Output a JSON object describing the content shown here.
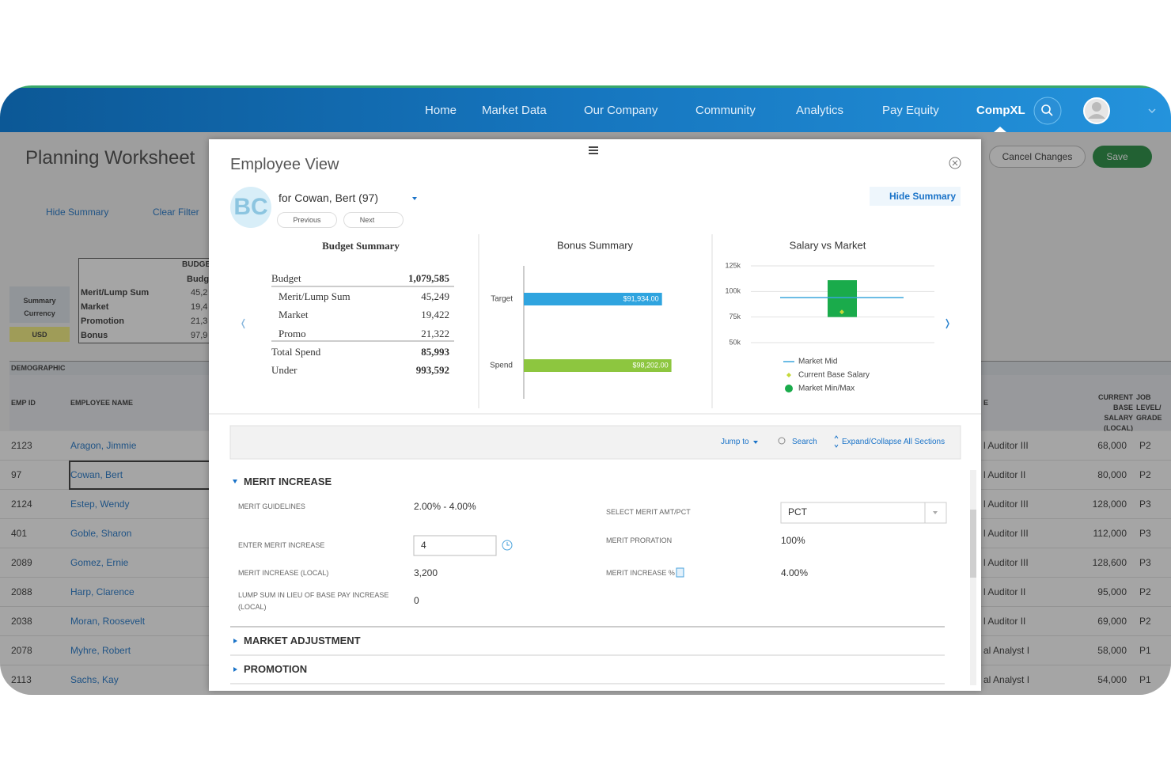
{
  "nav": {
    "items": [
      "Home",
      "Market Data",
      "Our Company",
      "Community",
      "Analytics",
      "Pay Equity",
      "CompXL"
    ]
  },
  "worksheet": {
    "title": "Planning Worksheet",
    "hide_summary": "Hide Summary",
    "clear_filter": "Clear Filter",
    "cancel": "Cancel Changes",
    "save": "Save",
    "summary_label": "Summary Currency",
    "currency": "USD",
    "budget_header": "BUDGE",
    "budget_sub": "Budg",
    "budget_rows": [
      [
        "Merit/Lump Sum",
        "45,2"
      ],
      [
        "Market",
        "19,4"
      ],
      [
        "Promotion",
        "21,3"
      ],
      [
        "Bonus",
        "97,9"
      ]
    ],
    "demographic": "DEMOGRAPHIC",
    "col_emp_id": "EMP ID",
    "col_name": "EMPLOYEE NAME",
    "col_job": "E",
    "col_salary": "CURRENT BASE SALARY (LOCAL)",
    "col_grade": "JOB LEVEL/ GRADE",
    "rows": [
      [
        "2123",
        "Aragon, Jimmie",
        "l Auditor III",
        "68,000",
        "P2"
      ],
      [
        "97",
        "Cowan, Bert",
        "l Auditor II",
        "80,000",
        "P2"
      ],
      [
        "2124",
        "Estep, Wendy",
        "l Auditor III",
        "128,000",
        "P3"
      ],
      [
        "401",
        "Goble, Sharon",
        "l Auditor III",
        "112,000",
        "P3"
      ],
      [
        "2089",
        "Gomez, Ernie",
        "l Auditor III",
        "128,600",
        "P3"
      ],
      [
        "2088",
        "Harp, Clarence",
        "l Auditor II",
        "95,000",
        "P2"
      ],
      [
        "2038",
        "Moran, Roosevelt",
        "l Auditor II",
        "69,000",
        "P2"
      ],
      [
        "2078",
        "Myhre, Robert",
        "al Analyst I",
        "58,000",
        "P1"
      ],
      [
        "2113",
        "Sachs, Kay",
        "al Analyst I",
        "54,000",
        "P1"
      ]
    ]
  },
  "modal": {
    "title": "Employee View",
    "initials": "BC",
    "for": "for Cowan, Bert (97)",
    "previous": "Previous",
    "next": "Next",
    "hide_summary": "Hide Summary"
  },
  "budget_summary": {
    "title": "Budget Summary",
    "rows": [
      {
        "label": "Budget",
        "value": "1,079,585"
      },
      {
        "label": "Merit/Lump Sum",
        "value": "45,249"
      },
      {
        "label": "Market",
        "value": "19,422"
      },
      {
        "label": "Promo",
        "value": "21,322"
      },
      {
        "label": "Total Spend",
        "value": "85,993"
      },
      {
        "label": "Under",
        "value": "993,592"
      }
    ]
  },
  "bonus_summary": {
    "type": "bar",
    "title": "Bonus Summary",
    "categories": [
      "Target",
      "Spend"
    ],
    "values": [
      91934,
      98202
    ],
    "value_labels": [
      "$91,934.00",
      "$98,202.00"
    ],
    "colors": [
      "#2fa4df",
      "#8dc63f"
    ],
    "xlim": [
      0,
      100000
    ]
  },
  "salary_vs_market": {
    "type": "range",
    "title": "Salary vs Market",
    "ylim": [
      50000,
      125000
    ],
    "yticks": [
      {
        "value": 50000,
        "label": "50k"
      },
      {
        "value": 75000,
        "label": "75k"
      },
      {
        "value": 100000,
        "label": "100k"
      },
      {
        "value": 125000,
        "label": "125k"
      }
    ],
    "market_mid": 94000,
    "current_base": 80000,
    "market_min": 75000,
    "market_max": 111000,
    "legend": [
      "Market Mid",
      "Current Base Salary",
      "Market Min/Max"
    ],
    "colors": {
      "mid": "#3ba6dc",
      "current": "#c5d93a",
      "range": "#1aab4b"
    }
  },
  "merit": {
    "jump_to": "Jump to",
    "search": "Search",
    "expand": "Expand/Collapse All Sections",
    "section": "MERIT INCREASE",
    "left": [
      {
        "label": "MERIT GUIDELINES",
        "value": "2.00% - 4.00%"
      },
      {
        "label": "ENTER MERIT INCREASE",
        "value": "4"
      },
      {
        "label": "MERIT INCREASE (LOCAL)",
        "value": "3,200"
      },
      {
        "label": "LUMP SUM IN LIEU OF BASE PAY INCREASE (LOCAL)",
        "value": "0"
      }
    ],
    "right": [
      {
        "label": "SELECT MERIT AMT/PCT",
        "value": "PCT"
      },
      {
        "label": "MERIT PRORATION",
        "value": "100%"
      },
      {
        "label": "MERIT INCREASE %",
        "value": "4.00%"
      }
    ],
    "sections": [
      "MARKET ADJUSTMENT",
      "PROMOTION"
    ]
  }
}
